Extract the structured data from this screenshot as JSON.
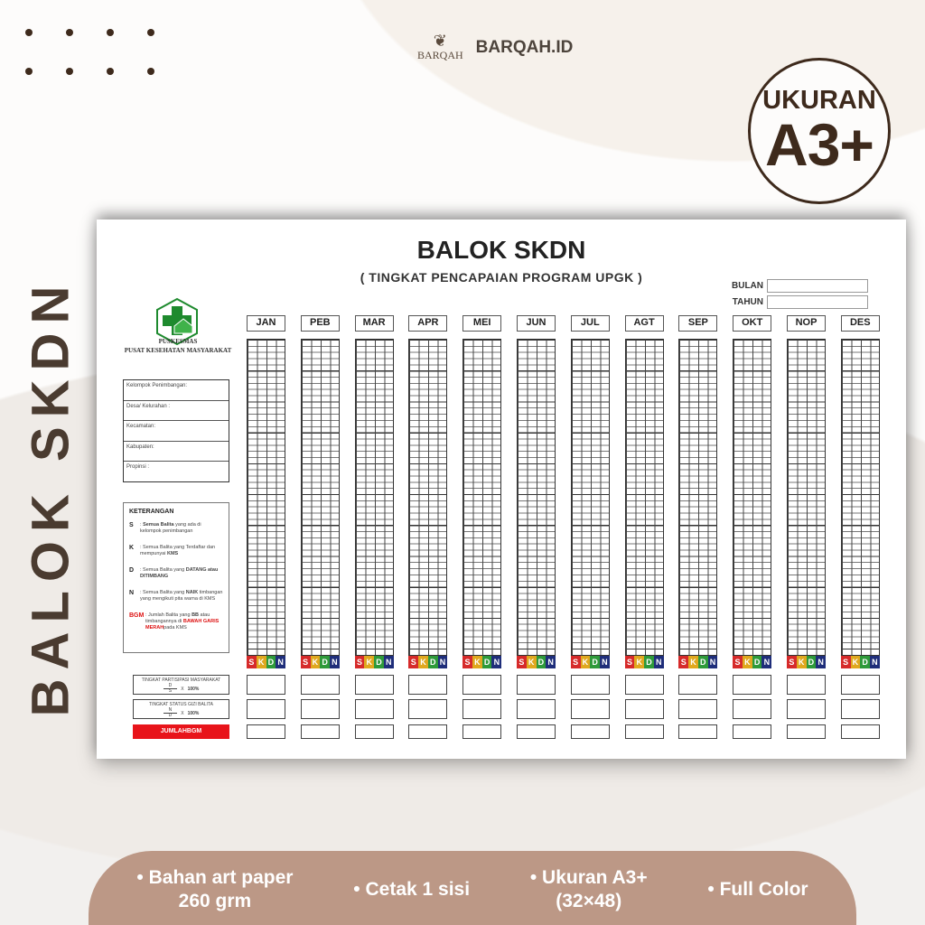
{
  "brand": {
    "mark_text": "BARQAH",
    "name": "BARQAH.ID"
  },
  "badge": {
    "line1": "UKURAN",
    "line2": "A3+"
  },
  "side_title": "BALOK SKDN",
  "document": {
    "title": "BALOK SKDN",
    "subtitle": "( TINGKAT PENCAPAIAN PROGRAM UPGK )",
    "bulan_label": "BULAN",
    "tahun_label": "TAHUN",
    "org_line1": "PUSKESMAS",
    "org_line2": "PUSAT KESEHATAN MASYARAKAT",
    "info_fields": [
      "Kelompok Penimbangan:",
      "Desa/ Kelurahan :",
      "Kecamatan:",
      "Kabupaten:",
      "Propinsi :"
    ],
    "keterangan": {
      "title": "KETERANGAN",
      "items": [
        {
          "key": "S",
          "pre": ": ",
          "bold": "Semua Balita",
          "post": " yang ada di kelompok penimbangan"
        },
        {
          "key": "K",
          "pre": ": Semua Balita yang Terdaftar dan mempunyai ",
          "bold": "KMS",
          "post": ""
        },
        {
          "key": "D",
          "pre": ": Semua Balita yang ",
          "bold": "DATANG atau DITIMBANG",
          "post": ""
        },
        {
          "key": "N",
          "pre": ": Semua Balita yang ",
          "bold": "NAIK",
          "post": " timbangan yang mengikuti pita warna di KMS"
        }
      ],
      "bgm": {
        "key": "BGM",
        "pre": ": Jumlah Balita yang ",
        "bold": "BB",
        "mid": " atau timbangannya di ",
        "red": "BAWAH GARIS MERAH",
        "post": "pada KMS"
      }
    },
    "partisipasi": {
      "label": "TINGKAT PARTISIPASI MASYARAKAT",
      "num": "D",
      "den": "S",
      "mult": "X",
      "pct": "100%"
    },
    "status_gizi": {
      "label": "TINGKAT STATUS GIZI BALITA",
      "num": "N",
      "den": "D",
      "mult": "X",
      "pct": "100%"
    },
    "jumlah_bgm": "JUMLAHBGM",
    "months": [
      "JAN",
      "PEB",
      "MAR",
      "APR",
      "MEI",
      "JUN",
      "JUL",
      "AGT",
      "SEP",
      "OKT",
      "NOP",
      "DES"
    ],
    "skdn": [
      {
        "letter": "S",
        "color": "#d62a2a"
      },
      {
        "letter": "K",
        "color": "#e0a81e"
      },
      {
        "letter": "D",
        "color": "#2e9a3a"
      },
      {
        "letter": "N",
        "color": "#1f2e7a"
      }
    ]
  },
  "features": [
    {
      "line1": "• Bahan art paper",
      "line2": "260 grm"
    },
    {
      "line1": "• Cetak 1 sisi",
      "line2": ""
    },
    {
      "line1": "• Ukuran A3+",
      "line2": "(32×48)"
    },
    {
      "line1": "• Full Color",
      "line2": ""
    }
  ],
  "colors": {
    "brown": "#3e2a1c",
    "pill": "#bc9886",
    "emblem_green": "#1e8a2e",
    "jumlah_red": "#e8141a"
  }
}
